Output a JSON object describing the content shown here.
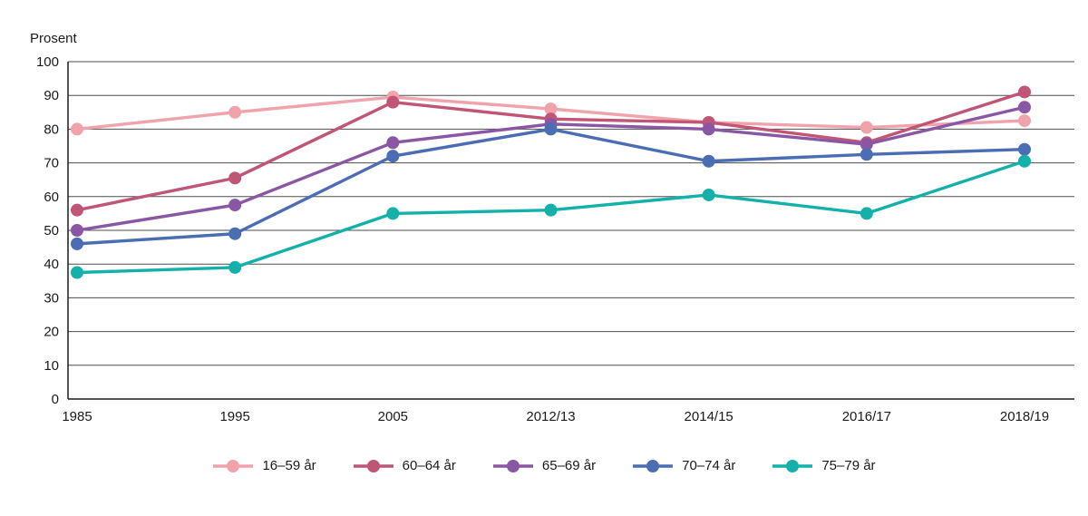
{
  "page": {
    "background": "#ffffff",
    "text_color": "#1a1a1a"
  },
  "chart_data": {
    "type": "line",
    "title": "Prosent",
    "x_categories": [
      "1985",
      "1995",
      "2005",
      "2012/13",
      "2014/15",
      "2016/17",
      "2018/19"
    ],
    "ylim": [
      0,
      100
    ],
    "y_ticks": [
      0,
      10,
      20,
      30,
      40,
      50,
      60,
      70,
      80,
      90,
      100
    ],
    "grid": true,
    "legend_position": "bottom",
    "series": [
      {
        "name": "16–59 år",
        "color": "#f0a3ab",
        "values": [
          80,
          85,
          89.5,
          86,
          82,
          80.5,
          82.5
        ]
      },
      {
        "name": "60–64 år",
        "color": "#c05576",
        "values": [
          56,
          65.5,
          88,
          83,
          82,
          76,
          91
        ]
      },
      {
        "name": "65–69 år",
        "color": "#8a57a4",
        "values": [
          50,
          57.5,
          76,
          81.5,
          80,
          75.5,
          86.5
        ]
      },
      {
        "name": "70–74 år",
        "color": "#4a6db4",
        "values": [
          46,
          49,
          72,
          80,
          70.5,
          72.5,
          74
        ]
      },
      {
        "name": "75–79 år",
        "color": "#14b1ab",
        "values": [
          37.5,
          39,
          55,
          56,
          60.5,
          55,
          70.5
        ]
      }
    ]
  }
}
